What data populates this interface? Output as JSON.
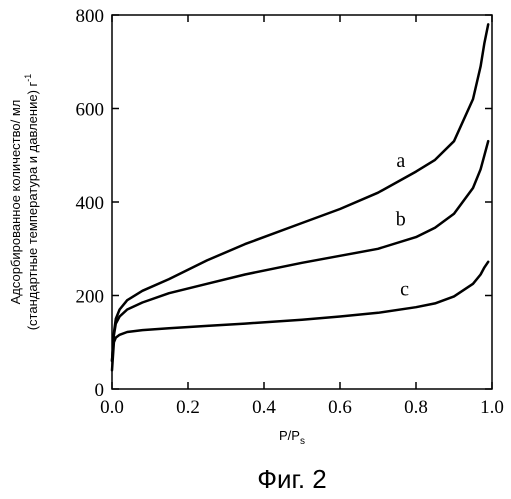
{
  "chart_data": {
    "type": "line",
    "title": "",
    "caption": "Фиг. 2",
    "xlabel": "P/Ps",
    "ylabel_line1": "Адсорбированное количество/ мл",
    "ylabel_line2": "(стандартные температура и давление) г",
    "ylabel_sup": "-1",
    "xlim": [
      0.0,
      1.0
    ],
    "ylim": [
      0,
      800
    ],
    "xticks": [
      "0.0",
      "0.2",
      "0.4",
      "0.6",
      "0.8",
      "1.0"
    ],
    "yticks": [
      "0",
      "200",
      "400",
      "600",
      "800"
    ],
    "grid": false,
    "series": [
      {
        "name": "a",
        "x": [
          0.0,
          0.005,
          0.01,
          0.02,
          0.04,
          0.08,
          0.15,
          0.25,
          0.35,
          0.5,
          0.6,
          0.7,
          0.8,
          0.85,
          0.9,
          0.95,
          0.97,
          0.98,
          0.99
        ],
        "y": [
          60,
          120,
          150,
          170,
          190,
          210,
          235,
          275,
          310,
          355,
          385,
          420,
          465,
          490,
          530,
          620,
          690,
          740,
          780
        ]
      },
      {
        "name": "b",
        "x": [
          0.0,
          0.005,
          0.01,
          0.02,
          0.04,
          0.08,
          0.15,
          0.25,
          0.35,
          0.5,
          0.6,
          0.7,
          0.8,
          0.85,
          0.9,
          0.95,
          0.97,
          0.98,
          0.99
        ],
        "y": [
          60,
          115,
          140,
          155,
          170,
          185,
          205,
          225,
          245,
          270,
          285,
          300,
          325,
          345,
          375,
          430,
          470,
          500,
          530
        ]
      },
      {
        "name": "c",
        "x": [
          0.0,
          0.005,
          0.01,
          0.02,
          0.04,
          0.08,
          0.15,
          0.25,
          0.35,
          0.5,
          0.6,
          0.7,
          0.8,
          0.85,
          0.9,
          0.95,
          0.97,
          0.98,
          0.99
        ],
        "y": [
          40,
          100,
          110,
          116,
          122,
          126,
          130,
          135,
          140,
          148,
          155,
          163,
          175,
          183,
          198,
          225,
          245,
          260,
          272
        ]
      }
    ],
    "series_label_positions": [
      {
        "name": "a",
        "x": 0.76,
        "y": 475
      },
      {
        "name": "b",
        "x": 0.76,
        "y": 350
      },
      {
        "name": "c",
        "x": 0.77,
        "y": 200
      }
    ]
  }
}
